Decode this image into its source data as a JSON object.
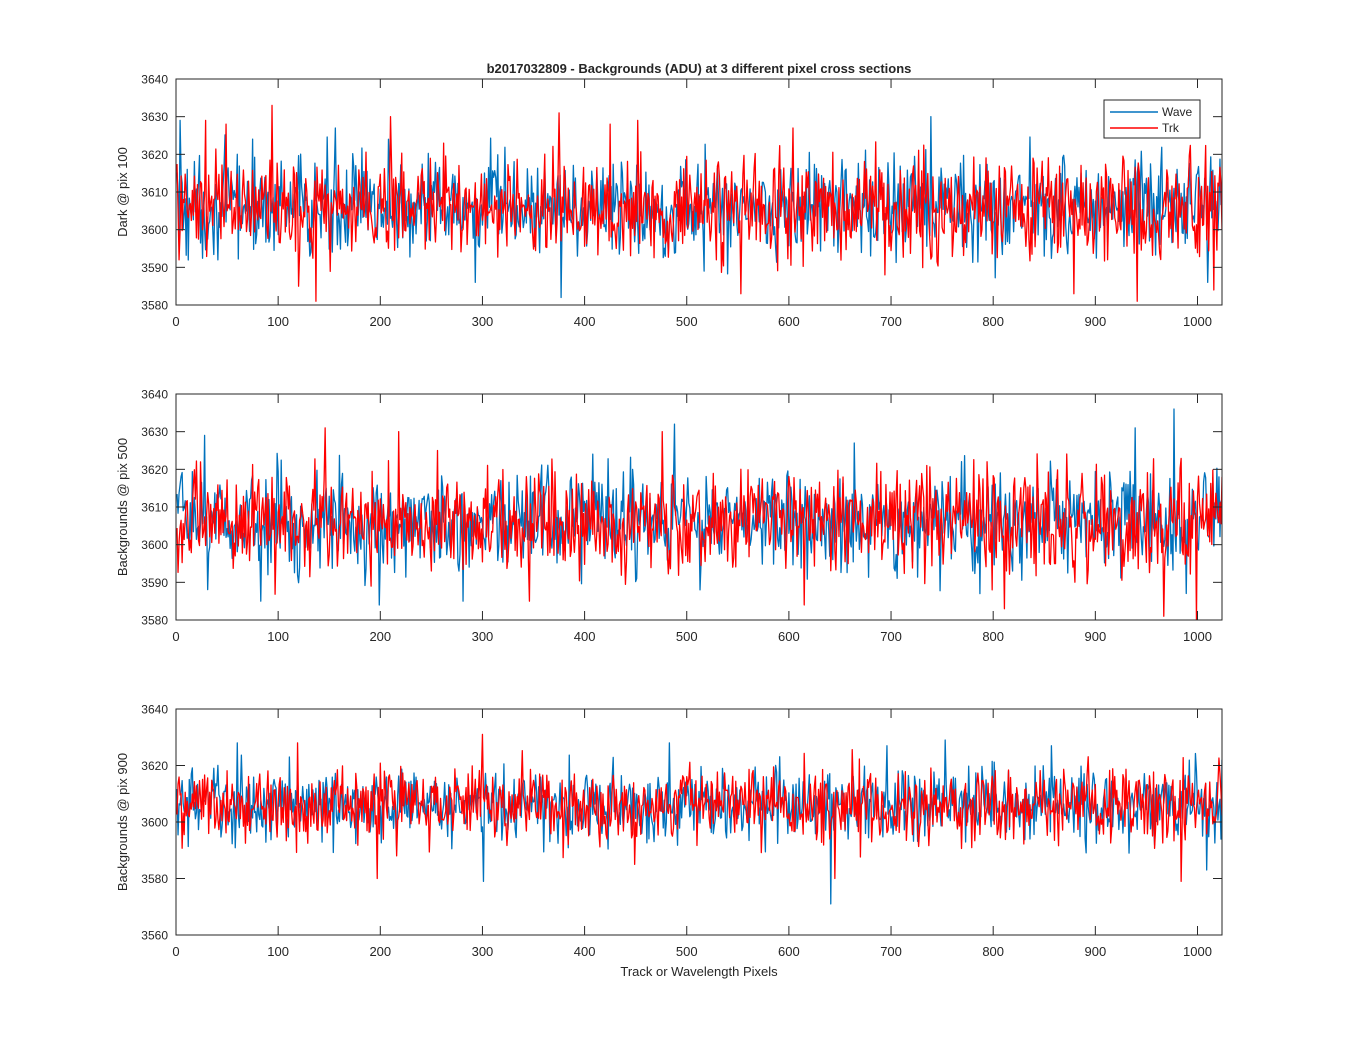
{
  "figure": {
    "title": "b2017032809 - Backgrounds (ADU) at 3 different pixel cross sections",
    "xlabel": "Track or Wavelength Pixels"
  },
  "legend": {
    "entries": [
      {
        "name": "Wave",
        "color": "#0072BD"
      },
      {
        "name": "Trk",
        "color": "#FF0000"
      }
    ],
    "placement": "top-right of first panel"
  },
  "colors": {
    "wave": "#0072BD",
    "trk": "#FF0000",
    "axes": "#262626"
  },
  "chart_data": [
    {
      "type": "line",
      "title": "b2017032809 - Backgrounds (ADU) at 3 different pixel cross sections",
      "xlabel": "",
      "ylabel": "Dark @ pix 100",
      "xlim": [
        0,
        1024
      ],
      "ylim": [
        3580,
        3640
      ],
      "xticks": [
        0,
        100,
        200,
        300,
        400,
        500,
        600,
        700,
        800,
        900,
        1000
      ],
      "yticks": [
        3580,
        3590,
        3600,
        3610,
        3620,
        3630,
        3640
      ],
      "grid": false,
      "legend": "top-right",
      "series_summary": {
        "Wave": {
          "mean": 3606,
          "min": 3582,
          "max": 3630,
          "points": 1024,
          "noise_sd": 6.5
        },
        "Trk": {
          "mean": 3606,
          "min": 3581,
          "max": 3633,
          "points": 1024,
          "noise_sd": 6.5
        }
      },
      "series": [
        {
          "name": "Wave",
          "color": "#0072BD",
          "x": [
            3,
            10,
            40,
            59,
            96,
            131,
            155,
            207,
            292,
            376,
            415,
            516,
            639,
            738,
            857,
            979,
            1009,
            1023
          ],
          "values": [
            3629,
            3616,
            3592,
            3620,
            3612,
            3594,
            3627,
            3624,
            3586,
            3582,
            3613,
            3589,
            3613,
            3630,
            3598,
            3616,
            3586,
            3612
          ]
        },
        {
          "name": "Trk",
          "color": "#FF0000",
          "x": [
            2,
            28,
            48,
            93,
            119,
            136,
            209,
            374,
            424,
            451,
            528,
            552,
            603,
            693,
            878,
            940,
            1015,
            1023
          ],
          "values": [
            3592,
            3629,
            3628,
            3633,
            3585,
            3581,
            3630,
            3631,
            3628,
            3629,
            3592,
            3583,
            3627,
            3588,
            3583,
            3581,
            3584,
            3600
          ]
        }
      ]
    },
    {
      "type": "line",
      "title": "",
      "xlabel": "",
      "ylabel": "Backgrounds @ pix 500",
      "xlim": [
        0,
        1024
      ],
      "ylim": [
        3580,
        3640
      ],
      "xticks": [
        0,
        100,
        200,
        300,
        400,
        500,
        600,
        700,
        800,
        900,
        1000
      ],
      "yticks": [
        3580,
        3590,
        3600,
        3610,
        3620,
        3630,
        3640
      ],
      "grid": false,
      "series_summary": {
        "Wave": {
          "mean": 3606,
          "min": 3584,
          "max": 3636,
          "points": 1024,
          "noise_sd": 6.5
        },
        "Trk": {
          "mean": 3606,
          "min": 3580,
          "max": 3631,
          "points": 1024,
          "noise_sd": 6.5
        }
      },
      "series": [
        {
          "name": "Wave",
          "color": "#0072BD",
          "x": [
            3,
            27,
            82,
            198,
            280,
            487,
            512,
            663,
            818,
            938,
            976,
            1020
          ],
          "values": [
            3616,
            3629,
            3585,
            3584,
            3585,
            3632,
            3588,
            3627,
            3593,
            3631,
            3636,
            3618
          ]
        },
        {
          "name": "Trk",
          "color": "#FF0000",
          "x": [
            145,
            190,
            217,
            345,
            475,
            614,
            793,
            810,
            966,
            998,
            1023
          ],
          "values": [
            3631,
            3589,
            3630,
            3585,
            3630,
            3584,
            3622,
            3583,
            3581,
            3580,
            3618
          ]
        }
      ]
    },
    {
      "type": "line",
      "title": "",
      "xlabel": "Track or Wavelength Pixels",
      "ylabel": "Backgrounds @ pix 900",
      "xlim": [
        0,
        1024
      ],
      "ylim": [
        3560,
        3640
      ],
      "xticks": [
        0,
        100,
        200,
        300,
        400,
        500,
        600,
        700,
        800,
        900,
        1000
      ],
      "yticks": [
        3560,
        3580,
        3600,
        3620,
        3640
      ],
      "grid": false,
      "series_summary": {
        "Wave": {
          "mean": 3606,
          "min": 3571,
          "max": 3628,
          "points": 1024,
          "noise_sd": 6.5
        },
        "Trk": {
          "mean": 3606,
          "min": 3579,
          "max": 3631,
          "points": 1024,
          "noise_sd": 6.5
        }
      },
      "series": [
        {
          "name": "Wave",
          "color": "#0072BD",
          "x": [
            59,
            300,
            482,
            640,
            695,
            752,
            856,
            1008
          ],
          "values": [
            3628,
            3579,
            3628,
            3571,
            3627,
            3629,
            3627,
            3583
          ]
        },
        {
          "name": "Trk",
          "color": "#FF0000",
          "x": [
            118,
            196,
            299,
            448,
            644,
            983
          ],
          "values": [
            3628,
            3580,
            3631,
            3585,
            3580,
            3579
          ]
        }
      ]
    }
  ]
}
